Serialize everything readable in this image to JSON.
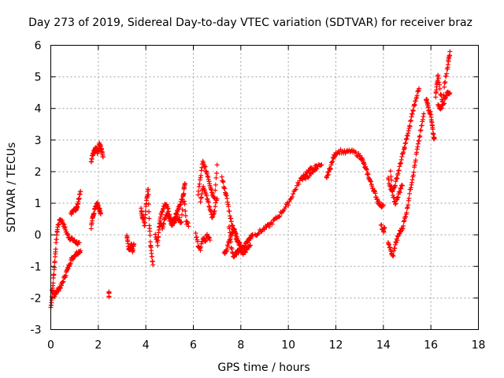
{
  "chart_data": {
    "type": "scatter",
    "title": "Day 273 of 2019, Sidereal Day-to-day VTEC variation (SDTVAR) for receiver braz",
    "xlabel": "GPS time / hours",
    "ylabel": "SDTVAR / TECUs",
    "xlim": [
      0,
      18
    ],
    "ylim": [
      -3,
      6
    ],
    "xticks": [
      0,
      2,
      4,
      6,
      8,
      10,
      12,
      14,
      16,
      18
    ],
    "yticks": [
      -3,
      -2,
      -1,
      0,
      1,
      2,
      3,
      4,
      5,
      6
    ],
    "grid": true,
    "marker": "+",
    "color": "#ff0000",
    "series": [
      {
        "name": "SDTVAR",
        "segments": [
          [
            [
              0.0,
              -2.3
            ],
            [
              0.05,
              -2.0
            ],
            [
              0.1,
              -1.5
            ],
            [
              0.15,
              -1.0
            ],
            [
              0.2,
              -0.5
            ],
            [
              0.25,
              0.0
            ],
            [
              0.3,
              0.3
            ],
            [
              0.4,
              0.5
            ],
            [
              0.5,
              0.4
            ],
            [
              0.6,
              0.2
            ],
            [
              0.7,
              0.0
            ],
            [
              0.8,
              -0.1
            ],
            [
              0.9,
              -0.15
            ],
            [
              1.0,
              -0.2
            ],
            [
              1.1,
              -0.25
            ],
            [
              1.2,
              -0.3
            ]
          ],
          [
            [
              0.05,
              -1.8
            ],
            [
              0.15,
              -1.9
            ],
            [
              0.25,
              -1.8
            ],
            [
              0.35,
              -1.7
            ],
            [
              0.45,
              -1.6
            ],
            [
              0.55,
              -1.4
            ],
            [
              0.65,
              -1.2
            ],
            [
              0.75,
              -1.0
            ],
            [
              0.85,
              -0.8
            ],
            [
              0.95,
              -0.7
            ],
            [
              1.05,
              -0.6
            ],
            [
              1.15,
              -0.55
            ],
            [
              1.25,
              -0.5
            ]
          ],
          [
            [
              0.85,
              0.7
            ],
            [
              0.95,
              0.75
            ],
            [
              1.05,
              0.8
            ],
            [
              1.1,
              0.9
            ],
            [
              1.15,
              1.0
            ],
            [
              1.2,
              1.2
            ],
            [
              1.25,
              1.35
            ]
          ],
          [
            [
              1.7,
              0.2
            ],
            [
              1.75,
              0.5
            ],
            [
              1.8,
              0.6
            ],
            [
              1.85,
              0.8
            ],
            [
              1.9,
              0.9
            ],
            [
              1.95,
              1.0
            ],
            [
              2.0,
              0.9
            ],
            [
              2.05,
              0.8
            ],
            [
              2.1,
              0.7
            ]
          ],
          [
            [
              1.7,
              2.3
            ],
            [
              1.75,
              2.5
            ],
            [
              1.8,
              2.6
            ],
            [
              1.85,
              2.7
            ],
            [
              1.9,
              2.8
            ],
            [
              1.95,
              2.6
            ],
            [
              2.0,
              2.7
            ],
            [
              2.05,
              2.9
            ],
            [
              2.1,
              2.8
            ],
            [
              2.15,
              2.6
            ],
            [
              2.2,
              2.5
            ]
          ],
          [
            [
              2.45,
              -1.8
            ],
            [
              2.45,
              -1.95
            ]
          ],
          [
            [
              3.2,
              0.0
            ],
            [
              3.25,
              -0.3
            ],
            [
              3.3,
              -0.5
            ],
            [
              3.35,
              -0.4
            ],
            [
              3.4,
              -0.3
            ],
            [
              3.45,
              -0.5
            ],
            [
              3.5,
              -0.3
            ]
          ],
          [
            [
              3.8,
              0.8
            ],
            [
              3.85,
              0.6
            ],
            [
              3.9,
              0.5
            ],
            [
              3.95,
              0.3
            ],
            [
              4.0,
              0.9
            ],
            [
              4.05,
              1.2
            ],
            [
              4.1,
              1.5
            ],
            [
              4.15,
              0.3
            ],
            [
              4.2,
              -0.3
            ],
            [
              4.25,
              -0.7
            ],
            [
              4.3,
              -0.9
            ]
          ],
          [
            [
              4.4,
              0.0
            ],
            [
              4.5,
              -0.3
            ],
            [
              4.55,
              0.2
            ],
            [
              4.6,
              0.5
            ],
            [
              4.7,
              0.8
            ],
            [
              4.8,
              1.0
            ],
            [
              4.9,
              0.9
            ],
            [
              5.0,
              0.6
            ],
            [
              5.1,
              0.4
            ],
            [
              5.2,
              0.5
            ],
            [
              5.3,
              0.7
            ],
            [
              5.4,
              0.9
            ],
            [
              5.5,
              1.1
            ],
            [
              5.6,
              1.3
            ],
            [
              5.7,
              0.4
            ],
            [
              5.8,
              0.3
            ]
          ],
          [
            [
              4.6,
              0.4
            ],
            [
              4.7,
              0.2
            ],
            [
              4.8,
              0.5
            ],
            [
              4.9,
              0.7
            ],
            [
              5.0,
              0.5
            ],
            [
              5.1,
              0.3
            ],
            [
              5.2,
              0.4
            ],
            [
              5.3,
              0.6
            ],
            [
              5.4,
              0.5
            ],
            [
              5.5,
              0.4
            ],
            [
              5.6,
              1.5
            ],
            [
              5.65,
              1.6
            ]
          ],
          [
            [
              6.1,
              0.0
            ],
            [
              6.2,
              -0.3
            ],
            [
              6.3,
              -0.5
            ],
            [
              6.4,
              -0.1
            ],
            [
              6.5,
              -0.2
            ],
            [
              6.6,
              0.0
            ],
            [
              6.7,
              -0.2
            ]
          ],
          [
            [
              6.2,
              1.3
            ],
            [
              6.3,
              1.8
            ],
            [
              6.4,
              2.3
            ],
            [
              6.5,
              2.1
            ],
            [
              6.6,
              1.9
            ],
            [
              6.7,
              1.6
            ],
            [
              6.8,
              1.3
            ],
            [
              6.9,
              1.2
            ],
            [
              7.0,
              2.2
            ]
          ],
          [
            [
              6.3,
              1.0
            ],
            [
              6.4,
              1.5
            ],
            [
              6.5,
              1.4
            ],
            [
              6.6,
              1.1
            ],
            [
              6.7,
              0.8
            ],
            [
              6.8,
              0.5
            ],
            [
              6.9,
              0.8
            ],
            [
              7.0,
              1.2
            ]
          ],
          [
            [
              7.2,
              1.8
            ],
            [
              7.3,
              1.5
            ],
            [
              7.4,
              1.2
            ],
            [
              7.5,
              0.8
            ],
            [
              7.6,
              0.4
            ],
            [
              7.7,
              0.2
            ],
            [
              7.8,
              0.0
            ],
            [
              7.9,
              -0.2
            ],
            [
              8.0,
              -0.3
            ]
          ],
          [
            [
              7.3,
              -0.6
            ],
            [
              7.4,
              -0.5
            ],
            [
              7.5,
              -0.2
            ],
            [
              7.6,
              0.0
            ],
            [
              7.7,
              0.2
            ],
            [
              7.8,
              -0.1
            ],
            [
              7.9,
              -0.3
            ],
            [
              8.0,
              -0.5
            ],
            [
              8.1,
              -0.4
            ],
            [
              8.2,
              -0.3
            ],
            [
              8.3,
              -0.2
            ],
            [
              8.4,
              -0.1
            ],
            [
              8.5,
              0.0
            ]
          ],
          [
            [
              7.5,
              0.3
            ],
            [
              7.6,
              -0.4
            ],
            [
              7.7,
              -0.7
            ],
            [
              7.8,
              -0.6
            ],
            [
              7.9,
              -0.5
            ],
            [
              8.0,
              -0.4
            ],
            [
              8.1,
              -0.6
            ],
            [
              8.2,
              -0.5
            ],
            [
              8.3,
              -0.4
            ],
            [
              8.4,
              -0.3
            ]
          ],
          [
            [
              8.6,
              0.0
            ],
            [
              8.8,
              0.1
            ],
            [
              9.0,
              0.2
            ],
            [
              9.2,
              0.3
            ],
            [
              9.4,
              0.45
            ],
            [
              9.6,
              0.6
            ],
            [
              9.8,
              0.8
            ],
            [
              10.0,
              1.0
            ],
            [
              10.2,
              1.3
            ],
            [
              10.4,
              1.6
            ],
            [
              10.6,
              1.85
            ],
            [
              10.8,
              2.0
            ],
            [
              11.0,
              2.1
            ],
            [
              11.2,
              2.15
            ],
            [
              11.4,
              2.25
            ]
          ],
          [
            [
              10.6,
              1.75
            ],
            [
              10.8,
              1.85
            ],
            [
              11.0,
              1.95
            ],
            [
              11.2,
              2.05
            ]
          ],
          [
            [
              11.6,
              1.8
            ],
            [
              11.7,
              2.0
            ],
            [
              11.8,
              2.2
            ],
            [
              11.9,
              2.45
            ],
            [
              12.0,
              2.6
            ],
            [
              12.2,
              2.65
            ],
            [
              12.4,
              2.6
            ],
            [
              12.6,
              2.65
            ],
            [
              12.8,
              2.6
            ],
            [
              13.0,
              2.5
            ],
            [
              13.1,
              2.4
            ],
            [
              13.2,
              2.2
            ],
            [
              13.3,
              2.0
            ],
            [
              13.4,
              1.8
            ],
            [
              13.5,
              1.6
            ],
            [
              13.6,
              1.4
            ],
            [
              13.7,
              1.2
            ],
            [
              13.8,
              1.0
            ],
            [
              13.9,
              0.95
            ],
            [
              14.0,
              0.9
            ]
          ],
          [
            [
              13.9,
              0.3
            ],
            [
              14.0,
              0.1
            ],
            [
              14.05,
              0.2
            ]
          ],
          [
            [
              14.2,
              -0.2
            ],
            [
              14.3,
              -0.5
            ],
            [
              14.4,
              -0.7
            ],
            [
              14.5,
              -0.3
            ],
            [
              14.6,
              -0.1
            ],
            [
              14.7,
              0.1
            ],
            [
              14.8,
              0.2
            ],
            [
              14.9,
              0.5
            ],
            [
              15.0,
              0.8
            ],
            [
              15.1,
              1.3
            ],
            [
              15.2,
              1.7
            ],
            [
              15.3,
              2.1
            ],
            [
              15.4,
              2.6
            ],
            [
              15.5,
              3.0
            ],
            [
              15.6,
              3.4
            ],
            [
              15.7,
              3.8
            ]
          ],
          [
            [
              14.2,
              1.8
            ],
            [
              14.3,
              1.5
            ],
            [
              14.4,
              1.4
            ],
            [
              14.5,
              1.6
            ],
            [
              14.6,
              1.9
            ],
            [
              14.7,
              2.2
            ],
            [
              14.8,
              2.5
            ],
            [
              14.9,
              2.8
            ],
            [
              15.0,
              3.1
            ],
            [
              15.1,
              3.4
            ],
            [
              15.2,
              3.8
            ],
            [
              15.3,
              4.1
            ],
            [
              15.4,
              4.4
            ],
            [
              15.5,
              4.6
            ]
          ],
          [
            [
              14.3,
              2.0
            ],
            [
              14.4,
              1.2
            ],
            [
              14.5,
              1.0
            ],
            [
              14.6,
              1.2
            ],
            [
              14.7,
              1.4
            ],
            [
              14.8,
              1.6
            ]
          ],
          [
            [
              15.8,
              4.3
            ],
            [
              15.85,
              4.2
            ],
            [
              15.9,
              4.0
            ],
            [
              16.0,
              3.8
            ],
            [
              16.05,
              3.5
            ],
            [
              16.1,
              3.2
            ],
            [
              16.15,
              3.0
            ]
          ],
          [
            [
              16.2,
              4.4
            ],
            [
              16.25,
              4.8
            ],
            [
              16.3,
              5.0
            ],
            [
              16.4,
              4.5
            ],
            [
              16.5,
              4.2
            ],
            [
              16.6,
              4.9
            ],
            [
              16.7,
              5.3
            ],
            [
              16.75,
              5.6
            ],
            [
              16.8,
              5.75
            ]
          ],
          [
            [
              16.3,
              4.1
            ],
            [
              16.4,
              4.0
            ],
            [
              16.5,
              4.1
            ],
            [
              16.6,
              4.3
            ],
            [
              16.7,
              4.5
            ],
            [
              16.8,
              4.5
            ]
          ]
        ]
      }
    ]
  }
}
